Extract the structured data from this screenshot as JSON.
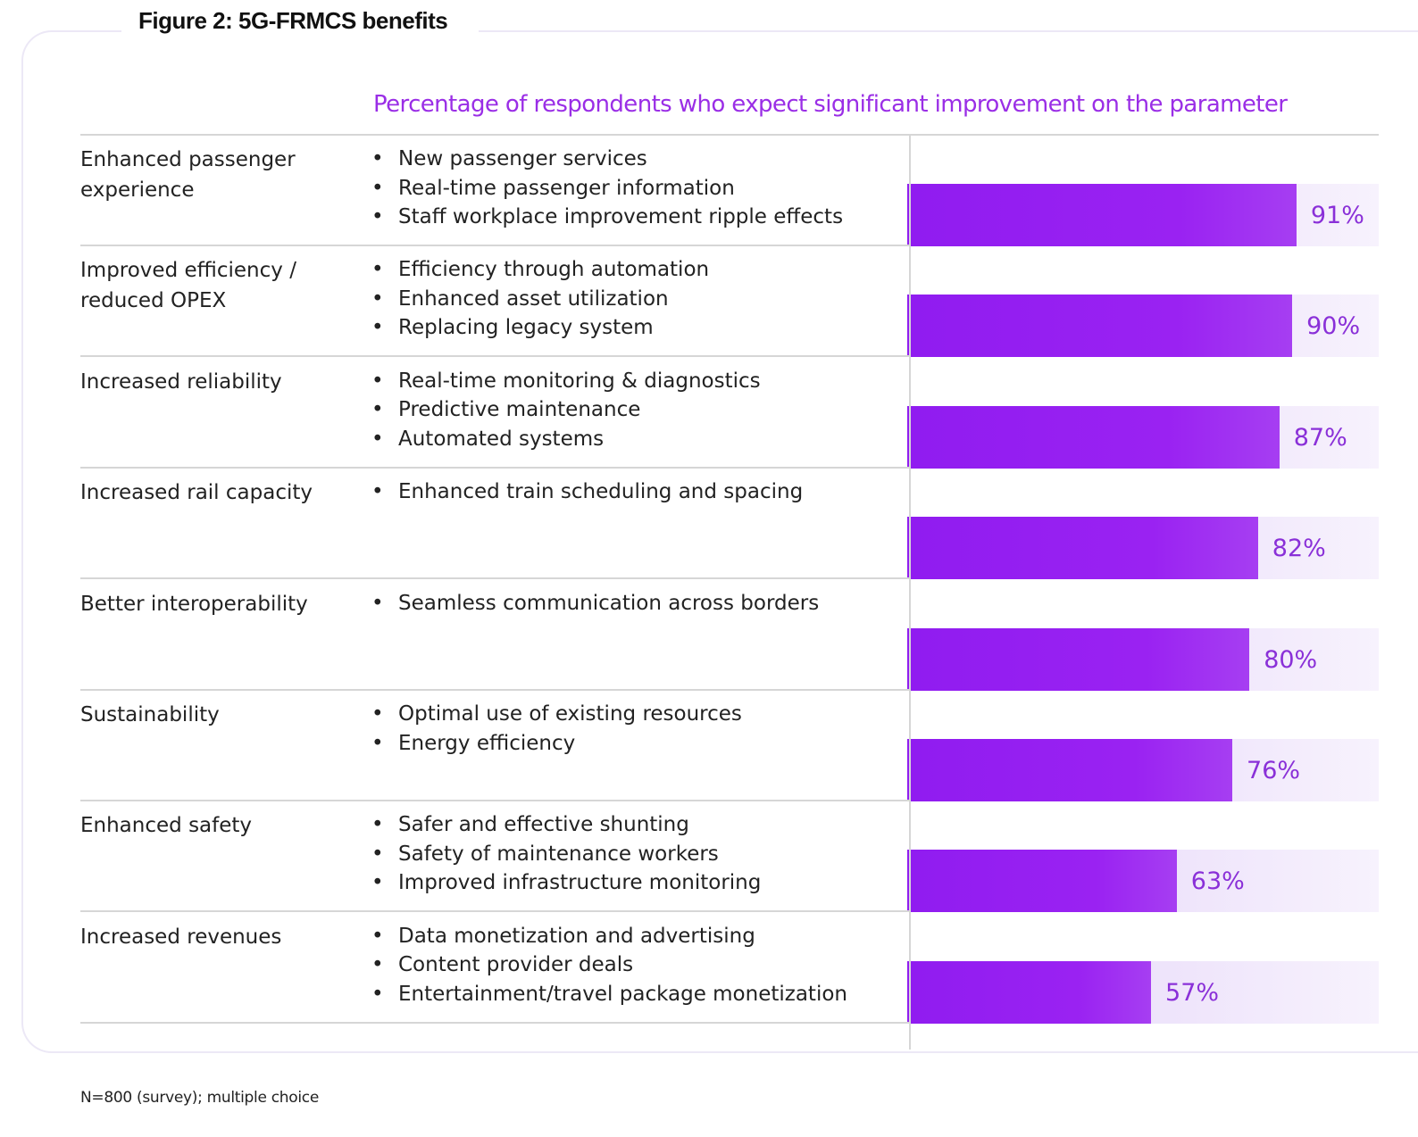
{
  "title": "Figure 2: 5G-FRMCS benefits",
  "footnote": "N=800 (survey); multiple choice",
  "chart_data": {
    "type": "bar",
    "orientation": "horizontal",
    "title": "Figure 2: 5G-FRMCS benefits",
    "subtitle": "Percentage of respondents who expect significant improvement on the parameter",
    "xlim": [
      0,
      100
    ],
    "grid": false,
    "bar_color": "#9420f0",
    "track_color": "#ece0fa",
    "label_color": "#8a30d8",
    "categories": [
      "Enhanced passenger experience",
      "Improved efficiency / reduced OPEX",
      "Increased reliability",
      "Increased rail capacity",
      "Better interoperability",
      "Sustainability",
      "Enhanced safety",
      "Increased revenues"
    ],
    "values": [
      91,
      90,
      87,
      82,
      80,
      76,
      63,
      57
    ],
    "data_labels": [
      "91%",
      "90%",
      "87%",
      "82%",
      "80%",
      "76%",
      "63%",
      "57%"
    ],
    "details": [
      [
        "New passenger services",
        "Real-time passenger information",
        "Staff workplace improvement ripple effects"
      ],
      [
        "Efficiency through automation",
        "Enhanced asset utilization",
        "Replacing legacy system"
      ],
      [
        "Real-time monitoring & diagnostics",
        "Predictive maintenance",
        "Automated systems"
      ],
      [
        "Enhanced train scheduling and spacing"
      ],
      [
        "Seamless communication across borders"
      ],
      [
        "Optimal use of existing resources",
        "Energy efficiency"
      ],
      [
        "Safer and effective shunting",
        "Safety of maintenance workers",
        "Improved infrastructure monitoring"
      ],
      [
        "Data monetization and advertising",
        "Content provider deals",
        "Entertainment/travel package monetization"
      ]
    ]
  }
}
